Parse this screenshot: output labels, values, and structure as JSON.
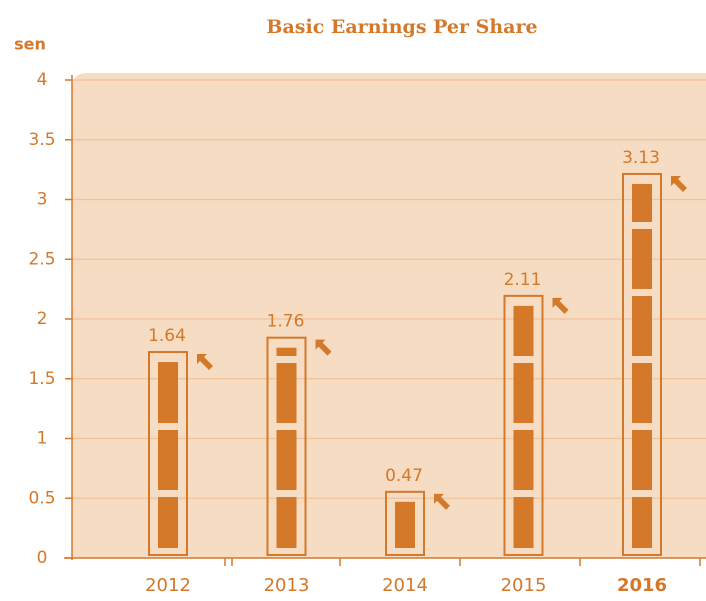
{
  "chart_data": {
    "type": "bar",
    "title": "Basic Earnings Per Share",
    "y_label": "sen",
    "categories": [
      "2012",
      "2013",
      "2014",
      "2015",
      "2016"
    ],
    "values": [
      1.64,
      1.76,
      0.47,
      2.11,
      3.13
    ],
    "highlight": "2016",
    "color": "#d4782a",
    "ylim": [
      0,
      4
    ],
    "yticks": [
      0,
      0.5,
      1,
      1.5,
      2,
      2.5,
      3,
      3.5,
      4
    ],
    "grid": true
  }
}
